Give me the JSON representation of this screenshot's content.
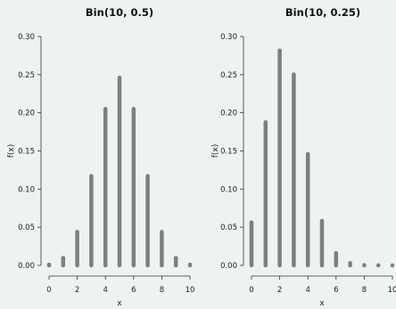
{
  "chart_data": [
    {
      "type": "bar",
      "title": "Bin(10, 0.5)",
      "xlabel": "x",
      "ylabel": "f(x)",
      "x": [
        0,
        1,
        2,
        3,
        4,
        5,
        6,
        7,
        8,
        9,
        10
      ],
      "values": [
        0.001,
        0.0098,
        0.0439,
        0.1172,
        0.2051,
        0.2461,
        0.2051,
        0.1172,
        0.0439,
        0.0098,
        0.001
      ],
      "xlim": [
        0,
        10
      ],
      "xticks": [
        "0",
        "2",
        "4",
        "6",
        "8",
        "10"
      ],
      "ylim": [
        0,
        0.3
      ],
      "yticks": [
        "0.00",
        "0.05",
        "0.10",
        "0.15",
        "0.20",
        "0.25",
        "0.30"
      ],
      "bar_color": "#7f7f7f",
      "grid": false
    },
    {
      "type": "bar",
      "title": "Bin(10, 0.25)",
      "xlabel": "x",
      "ylabel": "f(x)",
      "x": [
        0,
        1,
        2,
        3,
        4,
        5,
        6,
        7,
        8,
        9,
        10
      ],
      "values": [
        0.0563,
        0.1877,
        0.2816,
        0.2503,
        0.146,
        0.0584,
        0.0162,
        0.0031,
        0.0004,
        0.0001,
        0.0
      ],
      "xlim": [
        0,
        10
      ],
      "xticks": [
        "0",
        "2",
        "4",
        "6",
        "8",
        "10"
      ],
      "ylim": [
        0,
        0.3
      ],
      "yticks": [
        "0.00",
        "0.05",
        "0.10",
        "0.15",
        "0.20",
        "0.25",
        "0.30"
      ],
      "bar_color": "#7f7f7f",
      "grid": false
    }
  ]
}
